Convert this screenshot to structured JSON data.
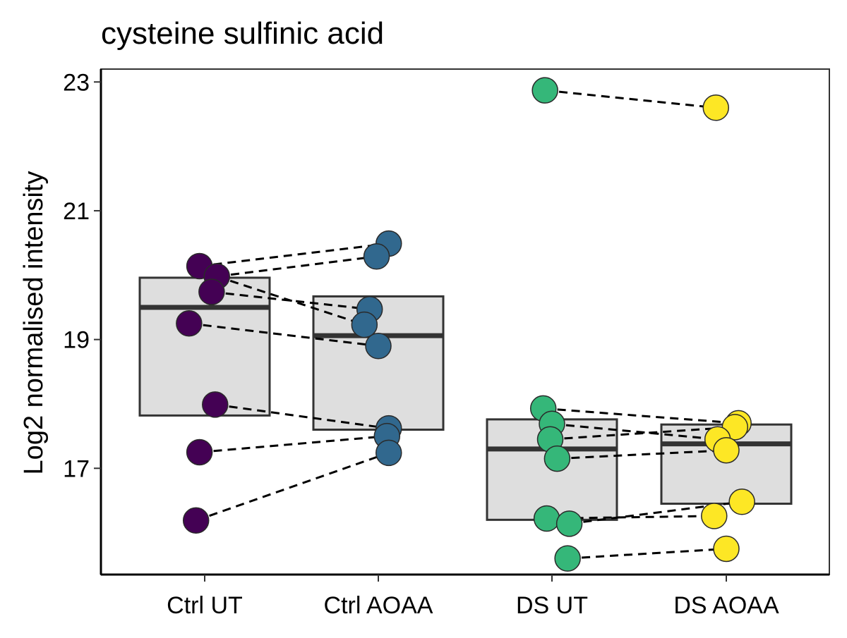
{
  "chart_data": {
    "type": "boxplot-paired-points",
    "title": "cysteine sulfinic acid",
    "xlabel": "",
    "ylabel": "Log2 normalised intensity",
    "categories": [
      "Ctrl UT",
      "Ctrl AOAA",
      "DS UT",
      "DS AOAA"
    ],
    "ylim": [
      15.35,
      23.2
    ],
    "yticks": [
      17,
      19,
      21,
      23
    ],
    "grid": false,
    "legend": "none",
    "colors": [
      "#440154",
      "#31688e",
      "#35b779",
      "#fde725"
    ],
    "box_fill": "#dedede",
    "boxes": [
      {
        "category": "Ctrl UT",
        "lower": 17.82,
        "median": 19.5,
        "upper": 19.96
      },
      {
        "category": "Ctrl AOAA",
        "lower": 17.6,
        "median": 19.06,
        "upper": 19.67
      },
      {
        "category": "DS UT",
        "lower": 16.2,
        "median": 17.3,
        "upper": 17.76
      },
      {
        "category": "DS AOAA",
        "lower": 16.45,
        "median": 17.38,
        "upper": 17.68
      }
    ],
    "series": [
      {
        "category": "Ctrl UT",
        "points": [
          {
            "offset": -0.03,
            "value": 20.14
          },
          {
            "offset": 0.07,
            "value": 19.98
          },
          {
            "offset": 0.04,
            "value": 19.74
          },
          {
            "offset": -0.09,
            "value": 19.25
          },
          {
            "offset": 0.06,
            "value": 17.99
          },
          {
            "offset": -0.03,
            "value": 17.25
          },
          {
            "offset": -0.05,
            "value": 16.19
          }
        ]
      },
      {
        "category": "Ctrl AOAA",
        "points": [
          {
            "offset": 0.06,
            "value": 20.49
          },
          {
            "offset": -0.01,
            "value": 20.29
          },
          {
            "offset": -0.05,
            "value": 19.47
          },
          {
            "offset": -0.08,
            "value": 19.23
          },
          {
            "offset": 0.0,
            "value": 18.9
          },
          {
            "offset": 0.06,
            "value": 17.62
          },
          {
            "offset": 0.05,
            "value": 17.5
          },
          {
            "offset": 0.06,
            "value": 17.24
          }
        ]
      },
      {
        "category": "DS UT",
        "points": [
          {
            "offset": -0.04,
            "value": 22.87
          },
          {
            "offset": -0.05,
            "value": 17.93
          },
          {
            "offset": 0.0,
            "value": 17.69
          },
          {
            "offset": -0.01,
            "value": 17.45
          },
          {
            "offset": 0.03,
            "value": 17.15
          },
          {
            "offset": -0.03,
            "value": 16.22
          },
          {
            "offset": 0.1,
            "value": 16.14
          },
          {
            "offset": 0.09,
            "value": 15.6
          }
        ]
      },
      {
        "category": "DS AOAA",
        "points": [
          {
            "offset": -0.06,
            "value": 22.6
          },
          {
            "offset": 0.07,
            "value": 17.7
          },
          {
            "offset": 0.05,
            "value": 17.64
          },
          {
            "offset": -0.05,
            "value": 17.45
          },
          {
            "offset": 0.0,
            "value": 17.28
          },
          {
            "offset": 0.09,
            "value": 16.48
          },
          {
            "offset": -0.07,
            "value": 16.26
          },
          {
            "offset": 0.0,
            "value": 15.75
          }
        ]
      }
    ],
    "pairs": [
      {
        "from": [
          0,
          0
        ],
        "to": [
          1,
          0
        ]
      },
      {
        "from": [
          0,
          1
        ],
        "to": [
          1,
          1
        ]
      },
      {
        "from": [
          0,
          2
        ],
        "to": [
          1,
          2
        ]
      },
      {
        "from": [
          0,
          1
        ],
        "to": [
          1,
          3
        ]
      },
      {
        "from": [
          0,
          3
        ],
        "to": [
          1,
          4
        ]
      },
      {
        "from": [
          0,
          4
        ],
        "to": [
          1,
          5
        ]
      },
      {
        "from": [
          0,
          5
        ],
        "to": [
          1,
          6
        ]
      },
      {
        "from": [
          0,
          6
        ],
        "to": [
          1,
          7
        ]
      },
      {
        "from": [
          2,
          0
        ],
        "to": [
          3,
          0
        ]
      },
      {
        "from": [
          2,
          1
        ],
        "to": [
          3,
          1
        ]
      },
      {
        "from": [
          2,
          2
        ],
        "to": [
          3,
          3
        ]
      },
      {
        "from": [
          2,
          3
        ],
        "to": [
          3,
          2
        ]
      },
      {
        "from": [
          2,
          4
        ],
        "to": [
          3,
          4
        ]
      },
      {
        "from": [
          2,
          6
        ],
        "to": [
          3,
          5
        ]
      },
      {
        "from": [
          2,
          5
        ],
        "to": [
          3,
          6
        ]
      },
      {
        "from": [
          2,
          7
        ],
        "to": [
          3,
          7
        ]
      }
    ]
  }
}
